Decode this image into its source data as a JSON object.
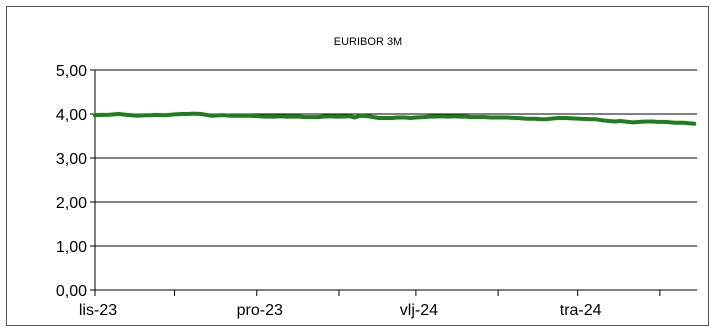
{
  "chart_data": {
    "type": "line",
    "title": "EURIBOR 3M",
    "xlabel": "",
    "ylabel": "",
    "ylim": [
      0,
      5
    ],
    "y_ticks": [
      "0,00",
      "1,00",
      "2,00",
      "3,00",
      "4,00",
      "5,00"
    ],
    "x_ticks": [
      "lis-23",
      "pro-23",
      "vlj-24",
      "tra-24"
    ],
    "x_range": [
      "2023-11-01",
      "2024-06-15"
    ],
    "grid": true,
    "legend": "none",
    "series": [
      {
        "color": "#1e7d1e",
        "points": [
          [
            "2023-11-01",
            3.97
          ],
          [
            "2023-11-03",
            3.98
          ],
          [
            "2023-11-06",
            3.98
          ],
          [
            "2023-11-08",
            3.99
          ],
          [
            "2023-11-10",
            4.0
          ],
          [
            "2023-11-13",
            3.98
          ],
          [
            "2023-11-15",
            3.97
          ],
          [
            "2023-11-17",
            3.96
          ],
          [
            "2023-11-20",
            3.97
          ],
          [
            "2023-11-22",
            3.97
          ],
          [
            "2023-11-24",
            3.98
          ],
          [
            "2023-11-27",
            3.97
          ],
          [
            "2023-11-29",
            3.98
          ],
          [
            "2023-12-01",
            3.99
          ],
          [
            "2023-12-04",
            4.0
          ],
          [
            "2023-12-06",
            4.0
          ],
          [
            "2023-12-08",
            4.01
          ],
          [
            "2023-12-11",
            4.0
          ],
          [
            "2023-12-13",
            3.98
          ],
          [
            "2023-12-15",
            3.96
          ],
          [
            "2023-12-18",
            3.97
          ],
          [
            "2023-12-20",
            3.97
          ],
          [
            "2023-12-22",
            3.96
          ],
          [
            "2023-12-27",
            3.96
          ],
          [
            "2023-12-29",
            3.96
          ],
          [
            "2024-01-02",
            3.95
          ],
          [
            "2024-01-04",
            3.94
          ],
          [
            "2024-01-08",
            3.94
          ],
          [
            "2024-01-10",
            3.95
          ],
          [
            "2024-01-12",
            3.94
          ],
          [
            "2024-01-15",
            3.94
          ],
          [
            "2024-01-17",
            3.94
          ],
          [
            "2024-01-19",
            3.93
          ],
          [
            "2024-01-22",
            3.93
          ],
          [
            "2024-01-24",
            3.93
          ],
          [
            "2024-01-26",
            3.94
          ],
          [
            "2024-01-29",
            3.95
          ],
          [
            "2024-01-31",
            3.94
          ],
          [
            "2024-02-02",
            3.94
          ],
          [
            "2024-02-05",
            3.95
          ],
          [
            "2024-02-07",
            3.92
          ],
          [
            "2024-02-09",
            3.96
          ],
          [
            "2024-02-12",
            3.95
          ],
          [
            "2024-02-14",
            3.93
          ],
          [
            "2024-02-16",
            3.91
          ],
          [
            "2024-02-19",
            3.91
          ],
          [
            "2024-02-21",
            3.91
          ],
          [
            "2024-02-23",
            3.92
          ],
          [
            "2024-02-26",
            3.92
          ],
          [
            "2024-02-28",
            3.91
          ],
          [
            "2024-03-01",
            3.92
          ],
          [
            "2024-03-04",
            3.93
          ],
          [
            "2024-03-06",
            3.94
          ],
          [
            "2024-03-08",
            3.94
          ],
          [
            "2024-03-11",
            3.95
          ],
          [
            "2024-03-13",
            3.94
          ],
          [
            "2024-03-15",
            3.95
          ],
          [
            "2024-03-18",
            3.94
          ],
          [
            "2024-03-20",
            3.94
          ],
          [
            "2024-03-22",
            3.93
          ],
          [
            "2024-03-25",
            3.93
          ],
          [
            "2024-03-27",
            3.93
          ],
          [
            "2024-03-29",
            3.92
          ],
          [
            "2024-04-02",
            3.92
          ],
          [
            "2024-04-04",
            3.92
          ],
          [
            "2024-04-08",
            3.91
          ],
          [
            "2024-04-10",
            3.9
          ],
          [
            "2024-04-12",
            3.89
          ],
          [
            "2024-04-15",
            3.89
          ],
          [
            "2024-04-17",
            3.88
          ],
          [
            "2024-04-19",
            3.88
          ],
          [
            "2024-04-22",
            3.9
          ],
          [
            "2024-04-24",
            3.91
          ],
          [
            "2024-04-26",
            3.91
          ],
          [
            "2024-04-29",
            3.9
          ],
          [
            "2024-05-02",
            3.89
          ],
          [
            "2024-05-06",
            3.88
          ],
          [
            "2024-05-08",
            3.88
          ],
          [
            "2024-05-10",
            3.86
          ],
          [
            "2024-05-13",
            3.84
          ],
          [
            "2024-05-15",
            3.83
          ],
          [
            "2024-05-17",
            3.84
          ],
          [
            "2024-05-20",
            3.82
          ],
          [
            "2024-05-22",
            3.81
          ],
          [
            "2024-05-24",
            3.82
          ],
          [
            "2024-05-27",
            3.83
          ],
          [
            "2024-05-29",
            3.83
          ],
          [
            "2024-05-31",
            3.82
          ],
          [
            "2024-06-03",
            3.82
          ],
          [
            "2024-06-05",
            3.81
          ],
          [
            "2024-06-07",
            3.8
          ],
          [
            "2024-06-10",
            3.8
          ],
          [
            "2024-06-12",
            3.79
          ],
          [
            "2024-06-14",
            3.78
          ]
        ]
      }
    ]
  }
}
